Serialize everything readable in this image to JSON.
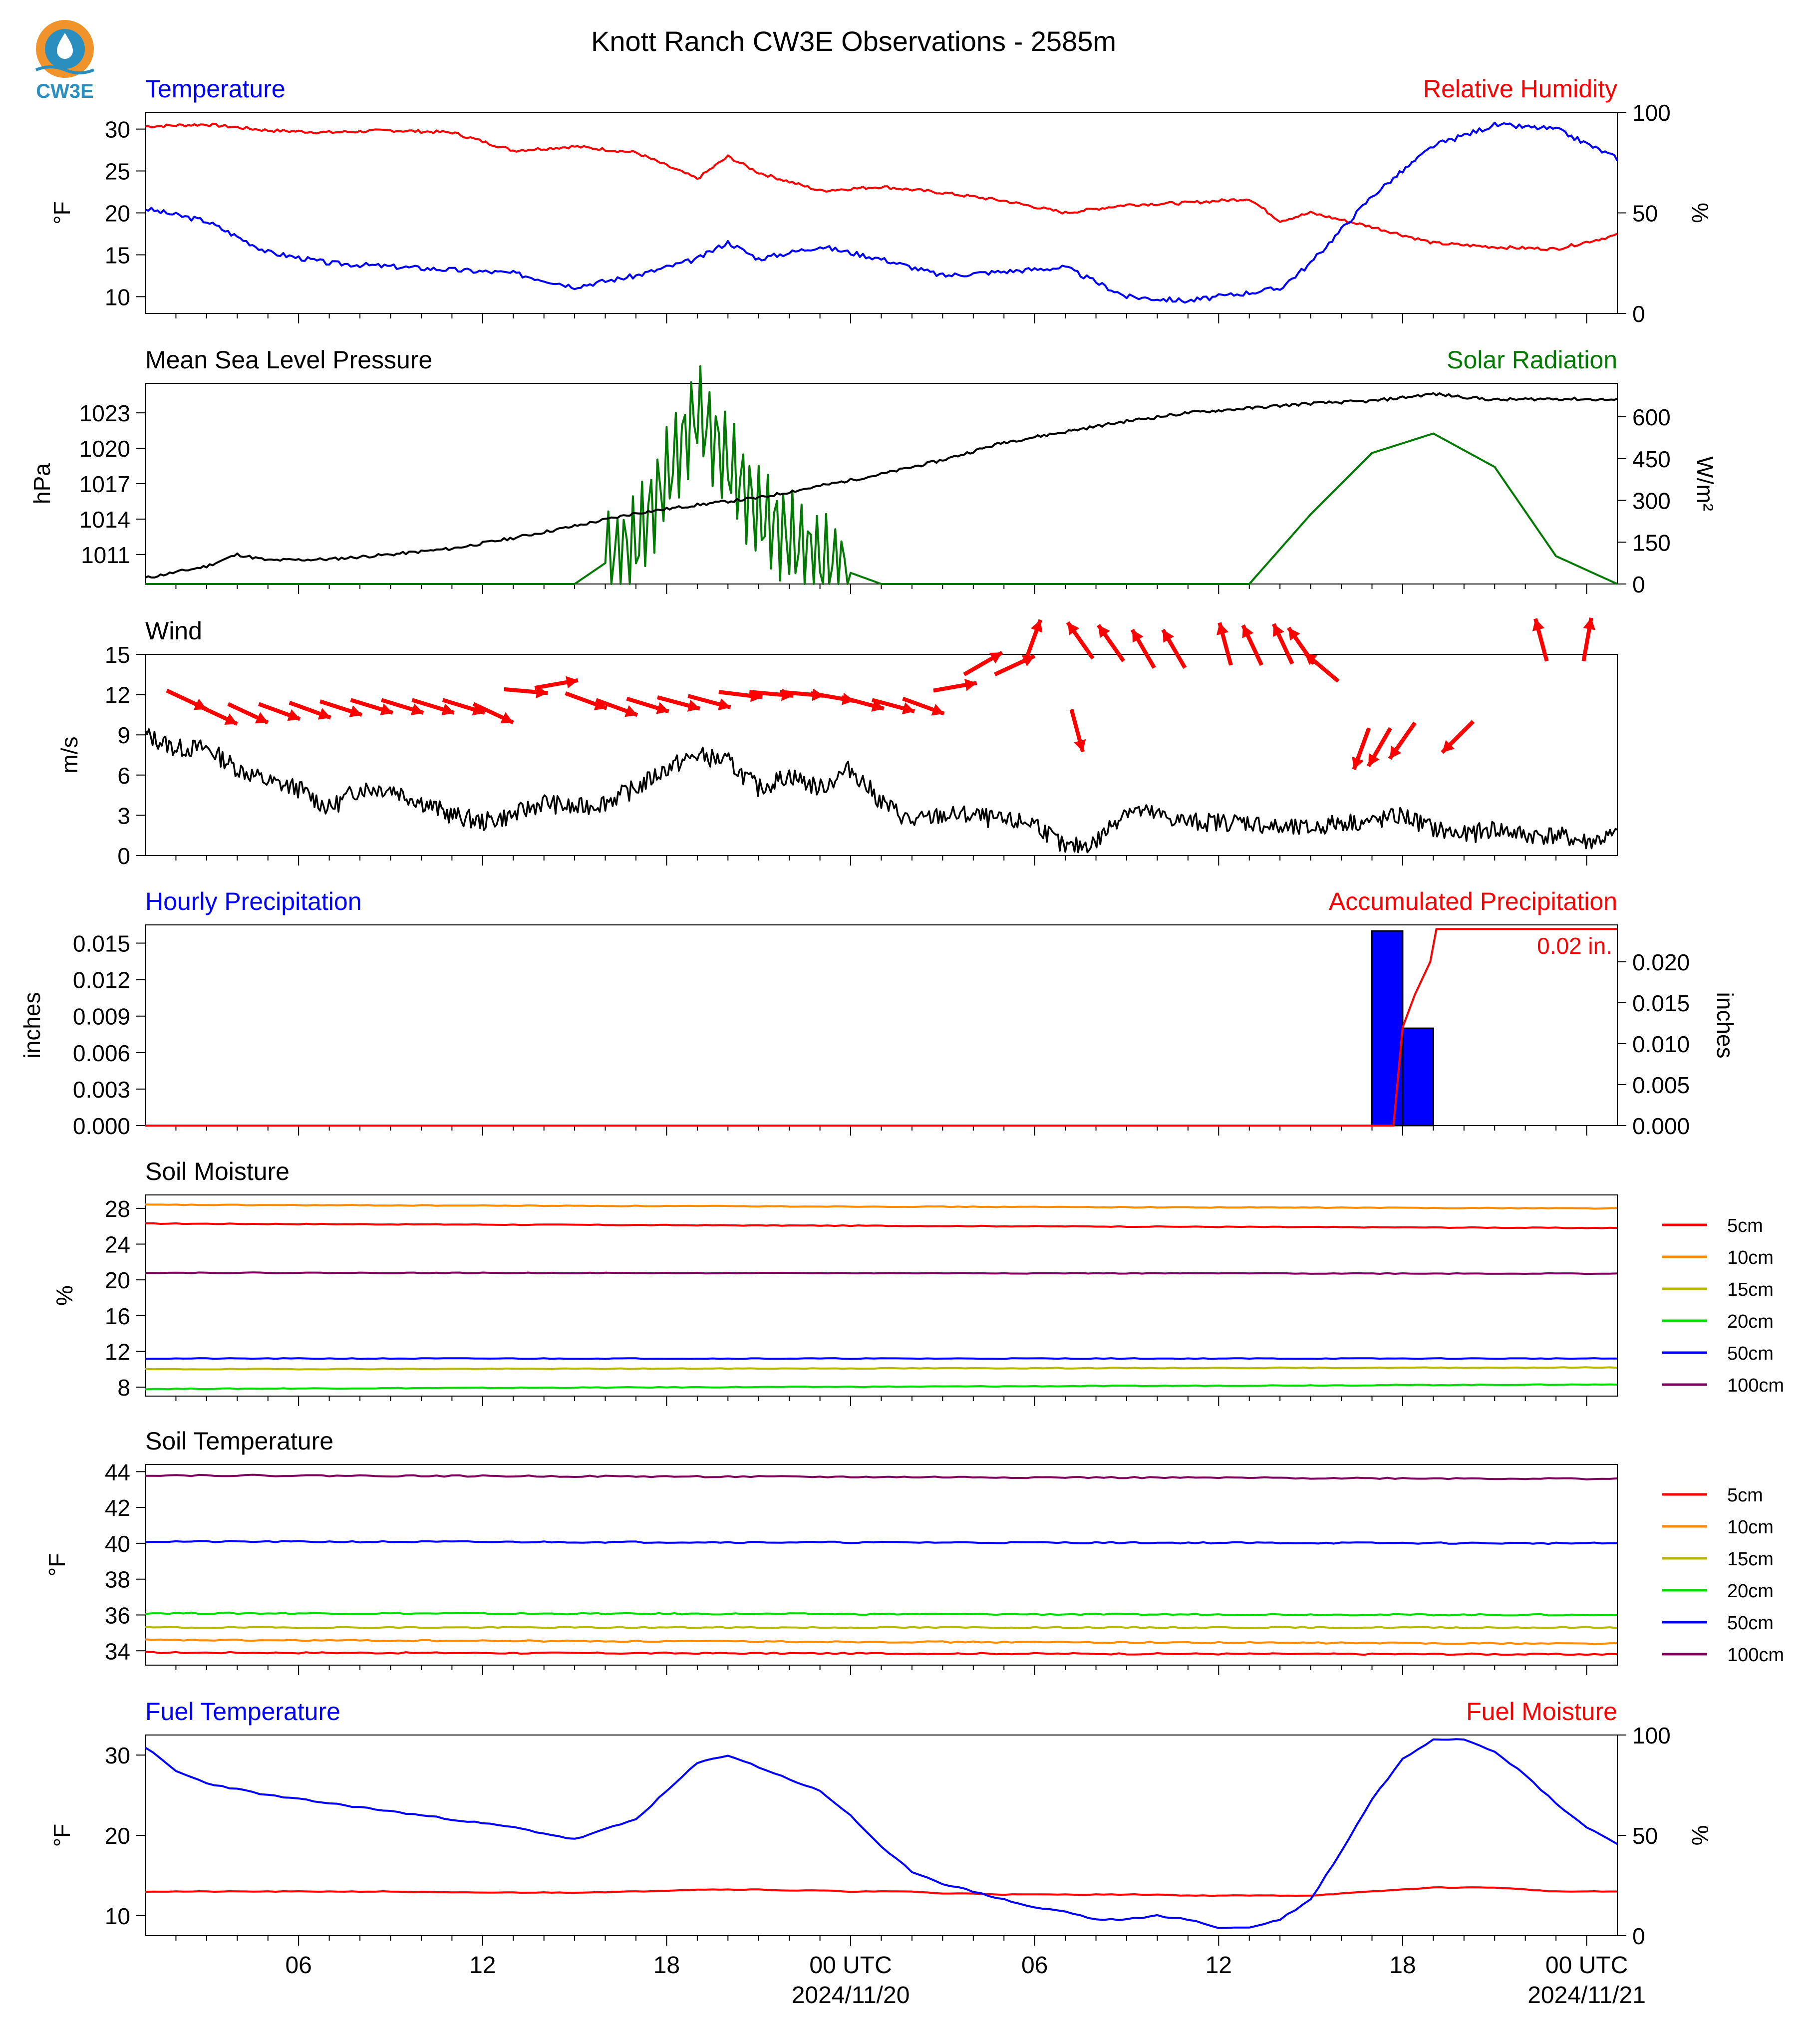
{
  "title": "Knott Ranch CW3E Observations - 2585m",
  "logo_text": "CW3E",
  "colors": {
    "blue": "#0000ff",
    "red": "#ff0000",
    "green": "#007a00",
    "black": "#000000"
  },
  "x_axis": {
    "tick_labels": [
      "06",
      "12",
      "18",
      "00 UTC",
      "06",
      "12",
      "18",
      "00 UTC"
    ],
    "date_labels": [
      "2024/11/20",
      "2024/11/21"
    ],
    "start": "2024-11-19 01:00 UTC",
    "end": "2024-11-21 01:00 UTC"
  },
  "panels": {
    "temperature": {
      "left_title": "Temperature",
      "right_title": "Relative Humidity",
      "left_unit": "°F",
      "right_unit": "%",
      "left_ticks": [
        "30",
        "25",
        "20",
        "15",
        "10"
      ],
      "right_ticks": [
        "100",
        "50",
        "0"
      ]
    },
    "pressure": {
      "left_title": "Mean Sea Level Pressure",
      "right_title": "Solar Radiation",
      "left_unit": "hPa",
      "right_unit": "W/m²",
      "left_ticks": [
        "1023",
        "1020",
        "1017",
        "1014",
        "1011"
      ],
      "right_ticks": [
        "600",
        "450",
        "300",
        "150",
        "0"
      ]
    },
    "wind": {
      "left_title": "Wind",
      "left_unit": "m/s",
      "left_ticks": [
        "15",
        "12",
        "9",
        "6",
        "3",
        "0"
      ]
    },
    "precip": {
      "left_title": "Hourly Precipitation",
      "right_title": "Accumulated Precipitation",
      "left_unit": "inches",
      "right_unit": "inches",
      "left_ticks": [
        "0.015",
        "0.012",
        "0.009",
        "0.006",
        "0.003",
        "0.000"
      ],
      "right_ticks": [
        "0.020",
        "0.015",
        "0.010",
        "0.005",
        "0.000"
      ],
      "annotation": "0.02 in."
    },
    "soil_moisture": {
      "left_title": "Soil Moisture",
      "left_unit": "%",
      "left_ticks": [
        "28",
        "24",
        "20",
        "16",
        "12",
        "8"
      ],
      "legend": [
        "5cm",
        "10cm",
        "15cm",
        "20cm",
        "50cm",
        "100cm"
      ]
    },
    "soil_temperature": {
      "left_title": "Soil Temperature",
      "left_unit": "°F",
      "left_ticks": [
        "44",
        "42",
        "40",
        "38",
        "36",
        "34"
      ],
      "legend": [
        "5cm",
        "10cm",
        "15cm",
        "20cm",
        "50cm",
        "100cm"
      ]
    },
    "fuel": {
      "left_title": "Fuel Temperature",
      "right_title": "Fuel Moisture",
      "left_unit": "°F",
      "right_unit": "%",
      "left_ticks": [
        "30",
        "20",
        "10"
      ],
      "right_ticks": [
        "100",
        "50",
        "0"
      ]
    }
  },
  "chart_data": [
    {
      "type": "line",
      "title": "Temperature / Relative Humidity",
      "x_hours": [
        0,
        2,
        4,
        6,
        8,
        10,
        12,
        14,
        16,
        18,
        19,
        20,
        22,
        24,
        26,
        28,
        30,
        32,
        34,
        36,
        37,
        38,
        40,
        42,
        44,
        46,
        48
      ],
      "series": [
        {
          "name": "Temperature",
          "axis": "left",
          "unit": "°F",
          "color": "#0000ff",
          "values": [
            20.5,
            19,
            15.3,
            14,
            13.6,
            13.2,
            12.8,
            11.2,
            12.5,
            14.5,
            16.5,
            14.5,
            16,
            14.5,
            12.5,
            13,
            13.5,
            10,
            9.5,
            10.5,
            11,
            14,
            22,
            28,
            30.5,
            30,
            26.5
          ]
        },
        {
          "name": "Relative Humidity",
          "axis": "right",
          "unit": "%",
          "color": "#ff0000",
          "values": [
            93,
            94,
            91,
            90,
            91,
            90,
            81,
            83,
            80,
            67,
            78,
            70,
            61,
            63,
            60,
            56,
            50,
            54,
            55,
            57,
            46,
            50,
            43,
            35,
            33,
            32,
            39
          ]
        }
      ],
      "ylim_left": [
        8,
        32
      ],
      "ylim_right": [
        0,
        100
      ]
    },
    {
      "type": "line",
      "title": "Mean Sea Level Pressure / Solar Radiation",
      "x_hours": [
        0,
        2,
        3,
        4,
        6,
        8,
        10,
        12,
        14,
        16,
        18,
        20,
        22,
        24,
        26,
        28,
        30,
        32,
        34,
        36,
        38,
        40,
        42,
        44,
        46,
        48
      ],
      "series": [
        {
          "name": "Mean Sea Level Pressure",
          "axis": "left",
          "unit": "hPa",
          "color": "#000000",
          "values": [
            1009,
            1010,
            1011,
            1010.5,
            1010.6,
            1011,
            1011.5,
            1012.4,
            1013.4,
            1014.5,
            1015.2,
            1015.8,
            1016.8,
            1017.8,
            1019,
            1020.5,
            1021.4,
            1022.3,
            1023,
            1023.4,
            1023.8,
            1024,
            1024.6,
            1024.1,
            1024.2,
            1024.1
          ]
        },
        {
          "name": "Solar Radiation",
          "axis": "right",
          "unit": "W/m²",
          "color": "#007a00",
          "values": [
            0,
            0,
            0,
            0,
            0,
            0,
            0,
            0,
            0,
            150,
            620,
            250,
            80,
            0,
            0,
            0,
            0,
            0,
            0,
            0,
            250,
            470,
            540,
            420,
            100,
            0
          ]
        }
      ],
      "ylim_left": [
        1008.5,
        1025.5
      ],
      "ylim_right": [
        0,
        720
      ]
    },
    {
      "type": "line",
      "title": "Wind",
      "x_hours": [
        0,
        1,
        2,
        3,
        4,
        5,
        6,
        7,
        8,
        9,
        10,
        11,
        12,
        13,
        14,
        15,
        16,
        17,
        18,
        19,
        20,
        21,
        22,
        23,
        24,
        25,
        26,
        27,
        28,
        29,
        30,
        31,
        32,
        33,
        34,
        35,
        36,
        37,
        38,
        39,
        40,
        41,
        42,
        43,
        44,
        45,
        46,
        47,
        48
      ],
      "series": [
        {
          "name": "Wind",
          "axis": "left",
          "unit": "m/s",
          "color": "#000000",
          "values": [
            9,
            8,
            8,
            6.5,
            5.5,
            5,
            3.5,
            5,
            5,
            4,
            3,
            2.5,
            3,
            4,
            3.5,
            4,
            5,
            6.5,
            7.5,
            7,
            5,
            6,
            5,
            6.5,
            4,
            2.5,
            3,
            3,
            2.5,
            2.5,
            0.5,
            1,
            3.5,
            3,
            2.5,
            2.5,
            2.5,
            2,
            2,
            2.5,
            2.5,
            3,
            2,
            1.5,
            2,
            1.5,
            1.5,
            1,
            1.5
          ]
        }
      ],
      "ylim_left": [
        0,
        15
      ],
      "barbs": [
        {
          "h": 0.7,
          "s": 12.3,
          "dir": 115
        },
        {
          "h": 1.7,
          "s": 11.2,
          "dir": 115
        },
        {
          "h": 2.7,
          "s": 11.3,
          "dir": 115
        },
        {
          "h": 3.7,
          "s": 11.3,
          "dir": 110
        },
        {
          "h": 4.7,
          "s": 11.4,
          "dir": 110
        },
        {
          "h": 5.7,
          "s": 11.5,
          "dir": 108
        },
        {
          "h": 6.7,
          "s": 11.6,
          "dir": 107
        },
        {
          "h": 7.7,
          "s": 11.6,
          "dir": 107
        },
        {
          "h": 8.7,
          "s": 11.6,
          "dir": 107
        },
        {
          "h": 9.7,
          "s": 11.6,
          "dir": 107
        },
        {
          "h": 10.7,
          "s": 11.3,
          "dir": 115
        },
        {
          "h": 11.7,
          "s": 12.4,
          "dir": 95
        },
        {
          "h": 12.7,
          "s": 12.5,
          "dir": 80
        },
        {
          "h": 13.7,
          "s": 12.1,
          "dir": 110
        },
        {
          "h": 14.7,
          "s": 11.6,
          "dir": 110
        },
        {
          "h": 15.7,
          "s": 11.7,
          "dir": 107
        },
        {
          "h": 16.7,
          "s": 11.8,
          "dir": 105
        },
        {
          "h": 17.7,
          "s": 11.9,
          "dir": 105
        },
        {
          "h": 18.7,
          "s": 12.2,
          "dir": 97
        },
        {
          "h": 19.7,
          "s": 12.2,
          "dir": 95
        },
        {
          "h": 20.7,
          "s": 12.2,
          "dir": 95
        },
        {
          "h": 21.7,
          "s": 12.1,
          "dir": 100
        },
        {
          "h": 22.7,
          "s": 11.8,
          "dir": 105
        },
        {
          "h": 23.7,
          "s": 11.6,
          "dir": 105
        },
        {
          "h": 24.7,
          "s": 11.7,
          "dir": 110
        },
        {
          "h": 25.7,
          "s": 12.3,
          "dir": 80
        },
        {
          "h": 26.7,
          "s": 13.5,
          "dir": 60
        },
        {
          "h": 27.7,
          "s": 13.5,
          "dir": 65
        },
        {
          "h": 28.7,
          "s": 14.5,
          "dir": 20
        },
        {
          "h": 30.2,
          "s": 10.9,
          "dir": 165
        },
        {
          "h": 30.9,
          "s": 14.7,
          "dir": 325
        },
        {
          "h": 31.9,
          "s": 14.5,
          "dir": 325
        },
        {
          "h": 32.9,
          "s": 14,
          "dir": 330
        },
        {
          "h": 33.9,
          "s": 14,
          "dir": 330
        },
        {
          "h": 35.4,
          "s": 14.2,
          "dir": 345
        },
        {
          "h": 36.4,
          "s": 14.2,
          "dir": 335
        },
        {
          "h": 37.4,
          "s": 14.3,
          "dir": 335
        },
        {
          "h": 38.1,
          "s": 14.3,
          "dir": 325
        },
        {
          "h": 38.9,
          "s": 13,
          "dir": 310
        },
        {
          "h": 39.9,
          "s": 9.5,
          "dir": 200
        },
        {
          "h": 40.6,
          "s": 9.5,
          "dir": 210
        },
        {
          "h": 41.4,
          "s": 9.9,
          "dir": 215
        },
        {
          "h": 43.3,
          "s": 10,
          "dir": 225
        },
        {
          "h": 45.7,
          "s": 14.5,
          "dir": 345
        },
        {
          "h": 46.9,
          "s": 14.5,
          "dir": 10
        }
      ]
    },
    {
      "type": "bar",
      "title": "Hourly Precipitation / Accumulated Precipitation",
      "series": [
        {
          "name": "Hourly Precipitation",
          "axis": "left",
          "unit": "inches",
          "color": "#0000ff",
          "bars": [
            {
              "hour_start": 40,
              "value": 0.016
            },
            {
              "hour_start": 41,
              "value": 0.008
            }
          ]
        },
        {
          "name": "Accumulated Precipitation",
          "axis": "right",
          "unit": "inches",
          "color": "#ff0000",
          "x_hours": [
            0,
            40.7,
            41,
            41.4,
            41.9,
            42.1,
            48
          ],
          "values": [
            0,
            0,
            0.012,
            0.016,
            0.02,
            0.024,
            0.024
          ]
        }
      ],
      "ylim_left": [
        0,
        0.0165
      ],
      "ylim_right": [
        0,
        0.0245
      ]
    },
    {
      "type": "line",
      "title": "Soil Moisture",
      "unit": "%",
      "x_hours": [
        0,
        48
      ],
      "series": [
        {
          "name": "5cm",
          "color": "#ff0000",
          "values": [
            26.3,
            25.8
          ]
        },
        {
          "name": "10cm",
          "color": "#ff8c00",
          "values": [
            28.4,
            28.0
          ]
        },
        {
          "name": "15cm",
          "color": "#b8b800",
          "values": [
            10.0,
            10.2
          ]
        },
        {
          "name": "20cm",
          "color": "#00dd00",
          "values": [
            7.8,
            8.3
          ]
        },
        {
          "name": "50cm",
          "color": "#0000ff",
          "values": [
            11.2,
            11.2
          ]
        },
        {
          "name": "100cm",
          "color": "#800060",
          "values": [
            20.8,
            20.7
          ]
        }
      ],
      "ylim": [
        7,
        29.5
      ]
    },
    {
      "type": "line",
      "title": "Soil Temperature",
      "unit": "°F",
      "x_hours": [
        0,
        48
      ],
      "series": [
        {
          "name": "5cm",
          "color": "#ff0000",
          "values": [
            33.9,
            33.8
          ]
        },
        {
          "name": "10cm",
          "color": "#ff8c00",
          "values": [
            34.6,
            34.4
          ]
        },
        {
          "name": "15cm",
          "color": "#b8b800",
          "values": [
            35.3,
            35.3
          ]
        },
        {
          "name": "20cm",
          "color": "#00dd00",
          "values": [
            36.1,
            36.0
          ]
        },
        {
          "name": "50cm",
          "color": "#0000ff",
          "values": [
            40.1,
            40.0
          ]
        },
        {
          "name": "100cm",
          "color": "#800060",
          "values": [
            43.8,
            43.6
          ]
        }
      ],
      "ylim": [
        33.2,
        44.4
      ]
    },
    {
      "type": "line",
      "title": "Fuel Temperature / Fuel Moisture",
      "x_hours": [
        0,
        1,
        2,
        4,
        6,
        8,
        10,
        12,
        14,
        16,
        17,
        18,
        19,
        20,
        21,
        22,
        23,
        24,
        25,
        26,
        27,
        28,
        29,
        30,
        31,
        32,
        33,
        34,
        35,
        36,
        37,
        38,
        39,
        40,
        41,
        42,
        43,
        44,
        45,
        46,
        47,
        48
      ],
      "series": [
        {
          "name": "Fuel Temperature",
          "axis": "left",
          "unit": "°F",
          "color": "#0000ff",
          "values": [
            31,
            28,
            26.5,
            25,
            24,
            23,
            22,
            21,
            19.5,
            22,
            25.5,
            29,
            30,
            28.5,
            27,
            25.5,
            22.5,
            18.5,
            15.5,
            14,
            13,
            12,
            11,
            10.5,
            9.5,
            9.5,
            10,
            9.5,
            8.5,
            8.5,
            9.5,
            12,
            18,
            24.5,
            29.5,
            32,
            32,
            30.5,
            27.5,
            24,
            21,
            19
          ]
        },
        {
          "name": "Fuel Moisture",
          "axis": "right",
          "unit": "%",
          "color": "#ff0000",
          "values": [
            22,
            22,
            22,
            22,
            22,
            22,
            21.5,
            21.5,
            21.5,
            22,
            22.5,
            23,
            23,
            23,
            22.5,
            22.5,
            22,
            22,
            22,
            21,
            21,
            20.5,
            20.5,
            20.5,
            20.5,
            20.5,
            20.5,
            20,
            20,
            20,
            20,
            20,
            21,
            22,
            23,
            24,
            24,
            24,
            23,
            22,
            22,
            22
          ]
        }
      ],
      "ylim_left": [
        7.5,
        32.5
      ],
      "ylim_right": [
        0,
        100
      ]
    }
  ]
}
